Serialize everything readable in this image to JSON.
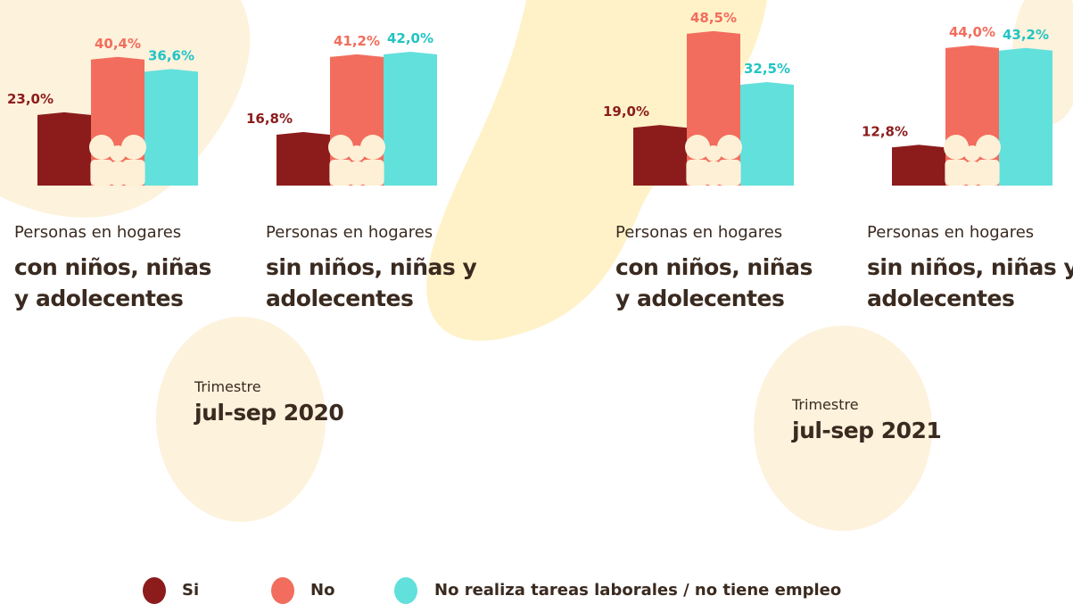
{
  "chart_data": [
    {
      "type": "bar",
      "subtitle": "Personas en hogares",
      "title": "con niños, niñas y adolecentes",
      "values": [
        23.0,
        40.4,
        36.6
      ],
      "value_labels": [
        "23,0%",
        "40,4%",
        "36,6%"
      ]
    },
    {
      "type": "bar",
      "subtitle": "Personas en hogares",
      "title": "sin niños, niñas y adolecentes",
      "values": [
        16.8,
        41.2,
        42.0
      ],
      "value_labels": [
        "16,8%",
        "41,2%",
        "42,0%"
      ]
    },
    {
      "type": "bar",
      "subtitle": "Personas en hogares",
      "title": "con niños, niñas y adolecentes",
      "values": [
        19.0,
        48.5,
        32.5
      ],
      "value_labels": [
        "19,0%",
        "48,5%",
        "32,5%"
      ]
    },
    {
      "type": "bar",
      "subtitle": "Personas en hogares",
      "title": "sin niños, niñas y adolecentes",
      "values": [
        12.8,
        44.0,
        43.2
      ],
      "value_labels": [
        "12,8%",
        "44,0%",
        "43,2%"
      ]
    }
  ],
  "legend": [
    {
      "name": "Si",
      "color": "#8c1c1c"
    },
    {
      "name": "No",
      "color": "#f26d5d"
    },
    {
      "name": "No realiza tareas laborales / no tiene empleo",
      "color": "#62e0dc"
    }
  ],
  "periods": [
    {
      "label": "Trimestre",
      "value": "jul-sep 2020"
    },
    {
      "label": "Trimestre",
      "value": "jul-sep 2021"
    }
  ]
}
